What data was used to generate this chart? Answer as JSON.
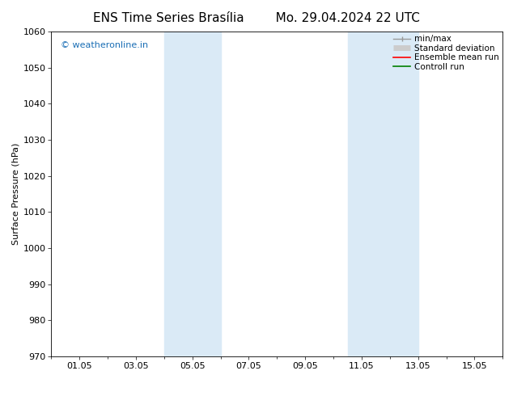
{
  "title1": "ENS Time Series Brasília",
  "title2": "Mo. 29.04.2024 22 UTC",
  "ylabel": "Surface Pressure (hPa)",
  "ylim": [
    970,
    1060
  ],
  "yticks": [
    970,
    980,
    990,
    1000,
    1010,
    1020,
    1030,
    1040,
    1050,
    1060
  ],
  "xlim": [
    0.0,
    16.0
  ],
  "xtick_positions": [
    1,
    3,
    5,
    7,
    9,
    11,
    13,
    15
  ],
  "xtick_labels": [
    "01.05",
    "03.05",
    "05.05",
    "07.05",
    "09.05",
    "11.05",
    "13.05",
    "15.05"
  ],
  "shaded_bands": [
    {
      "xmin": 4.0,
      "xmax": 6.0
    },
    {
      "xmin": 10.5,
      "xmax": 13.0
    }
  ],
  "shade_color": "#daeaf6",
  "watermark_text": "© weatheronline.in",
  "watermark_color": "#1a6eb5",
  "legend_entries": [
    {
      "label": "min/max",
      "color": "#999999",
      "lw": 1.0
    },
    {
      "label": "Standard deviation",
      "color": "#cccccc",
      "lw": 5
    },
    {
      "label": "Ensemble mean run",
      "color": "red",
      "lw": 1.2
    },
    {
      "label": "Controll run",
      "color": "green",
      "lw": 1.2
    }
  ],
  "bg_color": "#ffffff",
  "title_fontsize": 11,
  "label_fontsize": 8,
  "tick_fontsize": 8,
  "legend_fontsize": 7.5,
  "watermark_fontsize": 8
}
